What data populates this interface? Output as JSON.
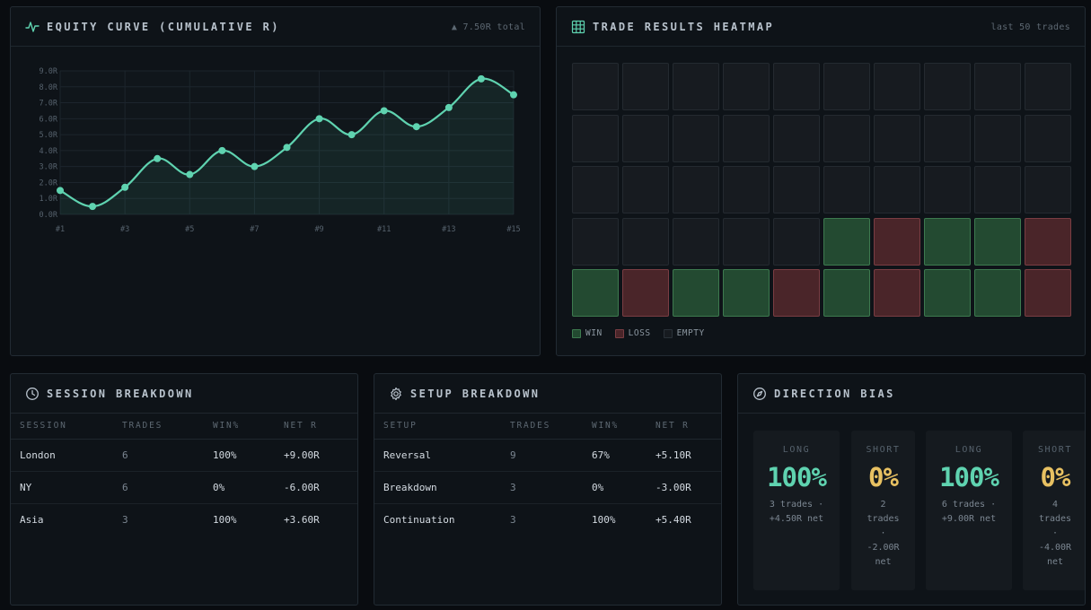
{
  "equity": {
    "title": "EQUITY CURVE (CUMULATIVE R)",
    "meta": "▲ 7.50R total",
    "line_color": "#5fd3b0"
  },
  "chart_data": {
    "type": "line",
    "title": "EQUITY CURVE (CUMULATIVE R)",
    "x": [
      "#1",
      "#2",
      "#3",
      "#4",
      "#5",
      "#6",
      "#7",
      "#8",
      "#9",
      "#10",
      "#11",
      "#12",
      "#13",
      "#14",
      "#15"
    ],
    "x_tick_labels": [
      "#1",
      "#3",
      "#5",
      "#7",
      "#9",
      "#11",
      "#13",
      "#15"
    ],
    "y_tick_labels": [
      "9.0R",
      "8.0R",
      "7.0R",
      "6.0R",
      "5.0R",
      "4.0R",
      "3.0R",
      "2.0R",
      "1.0R",
      "0.0R"
    ],
    "series": [
      {
        "values": [
          1.5,
          0.5,
          1.7,
          3.5,
          2.5,
          4.0,
          3.0,
          4.2,
          6.0,
          5.0,
          6.5,
          5.5,
          6.7,
          8.5,
          7.5
        ]
      }
    ],
    "ylim": [
      0,
      9
    ],
    "grid": true
  },
  "heatmap": {
    "title": "TRADE RESULTS HEATMAP",
    "meta": "last 50 trades",
    "cells": [
      "empty",
      "empty",
      "empty",
      "empty",
      "empty",
      "empty",
      "empty",
      "empty",
      "empty",
      "empty",
      "empty",
      "empty",
      "empty",
      "empty",
      "empty",
      "empty",
      "empty",
      "empty",
      "empty",
      "empty",
      "empty",
      "empty",
      "empty",
      "empty",
      "empty",
      "empty",
      "empty",
      "empty",
      "empty",
      "empty",
      "empty",
      "empty",
      "empty",
      "empty",
      "empty",
      "win",
      "loss",
      "win",
      "win",
      "loss",
      "win",
      "loss",
      "win",
      "win",
      "loss",
      "win",
      "loss",
      "win",
      "win",
      "loss"
    ],
    "legend": {
      "win": "WIN",
      "loss": "LOSS",
      "empty": "EMPTY"
    },
    "colors": {
      "win": "#234a31",
      "loss": "#4a2529",
      "empty": "#171b20"
    }
  },
  "session": {
    "title": "SESSION BREAKDOWN",
    "headers": [
      "SESSION",
      "TRADES",
      "WIN%",
      "NET R"
    ],
    "rows": [
      [
        "London",
        "6",
        "100%",
        "+9.00R"
      ],
      [
        "NY",
        "6",
        "0%",
        "-6.00R"
      ],
      [
        "Asia",
        "3",
        "100%",
        "+3.60R"
      ]
    ]
  },
  "setup": {
    "title": "SETUP BREAKDOWN",
    "headers": [
      "SETUP",
      "TRADES",
      "WIN%",
      "NET R"
    ],
    "rows": [
      [
        "Reversal",
        "9",
        "67%",
        "+5.10R"
      ],
      [
        "Breakdown",
        "3",
        "0%",
        "-3.00R"
      ],
      [
        "Continuation",
        "3",
        "100%",
        "+5.40R"
      ]
    ]
  },
  "direction": {
    "title": "DIRECTION BIAS",
    "cards": [
      {
        "label": "LONG",
        "pct": "100%",
        "line1": "3 trades ·",
        "line2": "+4.50R net",
        "line3": "",
        "line4": "",
        "kind": "long"
      },
      {
        "label": "SHORT",
        "pct": "0%",
        "line1": "2",
        "line2": "trades",
        "line3": "·",
        "line4": "-2.00R",
        "line5": "net",
        "kind": "short"
      },
      {
        "label": "LONG",
        "pct": "100%",
        "line1": "6 trades ·",
        "line2": "+9.00R net",
        "line3": "",
        "line4": "",
        "kind": "long"
      },
      {
        "label": "SHORT",
        "pct": "0%",
        "line1": "4",
        "line2": "trades",
        "line3": "·",
        "line4": "-4.00R",
        "line5": "net",
        "kind": "short"
      }
    ]
  }
}
